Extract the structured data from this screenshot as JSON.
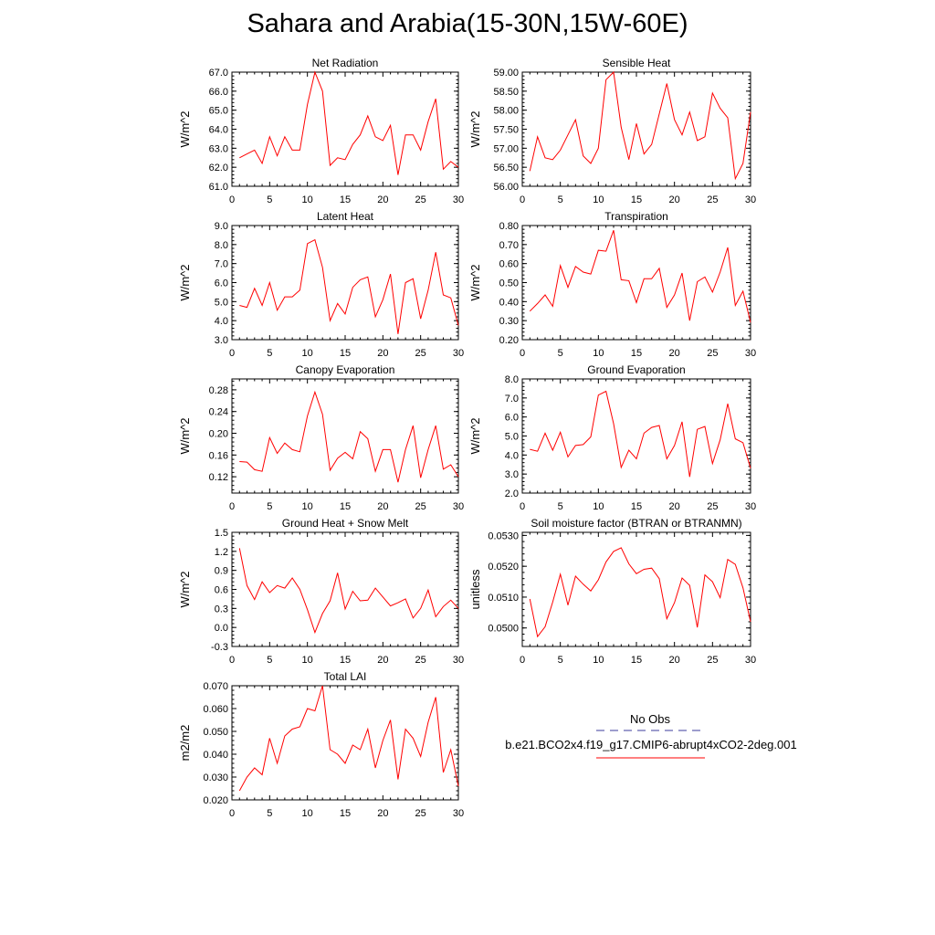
{
  "title": "Sahara and Arabia(15-30N,15W-60E)",
  "legend": {
    "entries": [
      {
        "label": "No Obs",
        "color": "#3b3b9e",
        "style": "dashed"
      },
      {
        "label": "b.e21.BCO2x4.f19_g17.CMIP6-abrupt4xCO2-2deg.001",
        "color": "#ff0000",
        "style": "solid"
      }
    ]
  },
  "chart_data": [
    {
      "type": "line",
      "title": "Net Radiation",
      "ylabel": "W/m^2",
      "x": [
        1,
        2,
        3,
        4,
        5,
        6,
        7,
        8,
        9,
        10,
        11,
        12,
        13,
        14,
        15,
        16,
        17,
        18,
        19,
        20,
        21,
        22,
        23,
        24,
        25,
        26,
        27,
        28,
        29,
        30
      ],
      "values": [
        62.5,
        62.7,
        62.9,
        62.2,
        63.6,
        62.6,
        63.6,
        62.9,
        62.9,
        65.3,
        67.0,
        66.0,
        62.1,
        62.5,
        62.4,
        63.2,
        63.7,
        64.7,
        63.6,
        63.4,
        64.2,
        61.6,
        63.7,
        63.7,
        62.9,
        64.4,
        65.6,
        61.9,
        62.3,
        62.0
      ],
      "xlim": [
        0,
        30
      ],
      "ylim": [
        61.0,
        67.0
      ],
      "xticks": [
        "0",
        "5",
        "10",
        "15",
        "20",
        "25",
        "30"
      ],
      "yticks": [
        "61.0",
        "62.0",
        "63.0",
        "64.0",
        "65.0",
        "66.0",
        "67.0"
      ]
    },
    {
      "type": "line",
      "title": "Sensible Heat",
      "ylabel": "W/m^2",
      "x": [
        1,
        2,
        3,
        4,
        5,
        6,
        7,
        8,
        9,
        10,
        11,
        12,
        13,
        14,
        15,
        16,
        17,
        18,
        19,
        20,
        21,
        22,
        23,
        24,
        25,
        26,
        27,
        28,
        29,
        30
      ],
      "values": [
        56.4,
        57.3,
        56.75,
        56.7,
        56.95,
        57.35,
        57.75,
        56.8,
        56.6,
        57.0,
        58.8,
        59.0,
        57.55,
        56.7,
        57.65,
        56.85,
        57.1,
        57.9,
        58.7,
        57.75,
        57.35,
        57.95,
        57.2,
        57.3,
        58.45,
        58.05,
        57.8,
        56.2,
        56.6,
        57.95
      ],
      "xlim": [
        0,
        30
      ],
      "ylim": [
        56.0,
        59.0
      ],
      "xticks": [
        "0",
        "5",
        "10",
        "15",
        "20",
        "25",
        "30"
      ],
      "yticks": [
        "56.00",
        "56.50",
        "57.00",
        "57.50",
        "58.00",
        "58.50",
        "59.00"
      ]
    },
    {
      "type": "line",
      "title": "Latent Heat",
      "ylabel": "W/m^2",
      "x": [
        1,
        2,
        3,
        4,
        5,
        6,
        7,
        8,
        9,
        10,
        11,
        12,
        13,
        14,
        15,
        16,
        17,
        18,
        19,
        20,
        21,
        22,
        23,
        24,
        25,
        26,
        27,
        28,
        29,
        30
      ],
      "values": [
        4.8,
        4.7,
        5.7,
        4.8,
        6.0,
        4.55,
        5.25,
        5.25,
        5.6,
        8.05,
        8.25,
        6.8,
        4.0,
        4.9,
        4.35,
        5.75,
        6.15,
        6.3,
        4.2,
        5.1,
        6.45,
        3.3,
        6.0,
        6.2,
        4.1,
        5.6,
        7.6,
        5.35,
        5.2,
        3.75
      ],
      "xlim": [
        0,
        30
      ],
      "ylim": [
        3.0,
        9.0
      ],
      "xticks": [
        "0",
        "5",
        "10",
        "15",
        "20",
        "25",
        "30"
      ],
      "yticks": [
        "3.0",
        "4.0",
        "5.0",
        "6.0",
        "7.0",
        "8.0",
        "9.0"
      ]
    },
    {
      "type": "line",
      "title": "Transpiration",
      "ylabel": "W/m^2",
      "x": [
        1,
        2,
        3,
        4,
        5,
        6,
        7,
        8,
        9,
        10,
        11,
        12,
        13,
        14,
        15,
        16,
        17,
        18,
        19,
        20,
        21,
        22,
        23,
        24,
        25,
        26,
        27,
        28,
        29,
        30
      ],
      "values": [
        0.35,
        0.39,
        0.435,
        0.375,
        0.59,
        0.475,
        0.585,
        0.555,
        0.545,
        0.67,
        0.665,
        0.775,
        0.515,
        0.51,
        0.395,
        0.52,
        0.52,
        0.575,
        0.37,
        0.435,
        0.55,
        0.3,
        0.505,
        0.53,
        0.45,
        0.555,
        0.685,
        0.38,
        0.455,
        0.29
      ],
      "xlim": [
        0,
        30
      ],
      "ylim": [
        0.2,
        0.8
      ],
      "xticks": [
        "0",
        "5",
        "10",
        "15",
        "20",
        "25",
        "30"
      ],
      "yticks": [
        "0.20",
        "0.30",
        "0.40",
        "0.50",
        "0.60",
        "0.70",
        "0.80"
      ]
    },
    {
      "type": "line",
      "title": "Canopy Evaporation",
      "ylabel": "W/m^2",
      "x": [
        1,
        2,
        3,
        4,
        5,
        6,
        7,
        8,
        9,
        10,
        11,
        12,
        13,
        14,
        15,
        16,
        17,
        18,
        19,
        20,
        21,
        22,
        23,
        24,
        25,
        26,
        27,
        28,
        29,
        30
      ],
      "values": [
        0.148,
        0.147,
        0.133,
        0.13,
        0.192,
        0.163,
        0.182,
        0.17,
        0.166,
        0.232,
        0.276,
        0.235,
        0.132,
        0.154,
        0.165,
        0.153,
        0.203,
        0.19,
        0.13,
        0.17,
        0.17,
        0.11,
        0.17,
        0.214,
        0.118,
        0.17,
        0.214,
        0.134,
        0.142,
        0.12
      ],
      "xlim": [
        0,
        30
      ],
      "ylim": [
        0.09,
        0.3
      ],
      "xticks": [
        "0",
        "5",
        "10",
        "15",
        "20",
        "25",
        "30"
      ],
      "yticks": [
        "0.12",
        "0.16",
        "0.20",
        "0.24",
        "0.28"
      ]
    },
    {
      "type": "line",
      "title": "Ground Evaporation",
      "ylabel": "W/m^2",
      "x": [
        1,
        2,
        3,
        4,
        5,
        6,
        7,
        8,
        9,
        10,
        11,
        12,
        13,
        14,
        15,
        16,
        17,
        18,
        19,
        20,
        21,
        22,
        23,
        24,
        25,
        26,
        27,
        28,
        29,
        30
      ],
      "values": [
        4.3,
        4.2,
        5.15,
        4.25,
        5.2,
        3.9,
        4.5,
        4.55,
        4.95,
        7.15,
        7.35,
        5.65,
        3.35,
        4.25,
        3.8,
        5.15,
        5.45,
        5.55,
        3.8,
        4.5,
        5.75,
        2.85,
        5.35,
        5.5,
        3.55,
        4.8,
        6.7,
        4.85,
        4.65,
        3.3
      ],
      "xlim": [
        0,
        30
      ],
      "ylim": [
        2.0,
        8.0
      ],
      "xticks": [
        "0",
        "5",
        "10",
        "15",
        "20",
        "25",
        "30"
      ],
      "yticks": [
        "2.0",
        "3.0",
        "4.0",
        "5.0",
        "6.0",
        "7.0",
        "8.0"
      ]
    },
    {
      "type": "line",
      "title": "Ground Heat + Snow Melt",
      "ylabel": "W/m^2",
      "x": [
        1,
        2,
        3,
        4,
        5,
        6,
        7,
        8,
        9,
        10,
        11,
        12,
        13,
        14,
        15,
        16,
        17,
        18,
        19,
        20,
        21,
        22,
        23,
        24,
        25,
        26,
        27,
        28,
        29,
        30
      ],
      "values": [
        1.25,
        0.66,
        0.44,
        0.72,
        0.55,
        0.66,
        0.62,
        0.78,
        0.6,
        0.28,
        -0.08,
        0.22,
        0.42,
        0.86,
        0.29,
        0.57,
        0.42,
        0.43,
        0.62,
        0.48,
        0.34,
        0.39,
        0.45,
        0.15,
        0.3,
        0.59,
        0.17,
        0.33,
        0.43,
        0.3
      ],
      "xlim": [
        0,
        30
      ],
      "ylim": [
        -0.3,
        1.5
      ],
      "xticks": [
        "0",
        "5",
        "10",
        "15",
        "20",
        "25",
        "30"
      ],
      "yticks": [
        "-0.3",
        "0.0",
        "0.3",
        "0.6",
        "0.9",
        "1.2",
        "1.5"
      ]
    },
    {
      "type": "line",
      "title": "Soil moisture factor (BTRAN or BTRANMN)",
      "ylabel": "unitless",
      "x": [
        1,
        2,
        3,
        4,
        5,
        6,
        7,
        8,
        9,
        10,
        11,
        12,
        13,
        14,
        15,
        16,
        17,
        18,
        19,
        20,
        21,
        22,
        23,
        24,
        25,
        26,
        27,
        28,
        29,
        30
      ],
      "values": [
        0.05094,
        0.04972,
        0.05004,
        0.05084,
        0.05174,
        0.05074,
        0.05168,
        0.05142,
        0.0512,
        0.05156,
        0.05214,
        0.05248,
        0.0526,
        0.05208,
        0.05176,
        0.0519,
        0.05194,
        0.0516,
        0.0503,
        0.05082,
        0.05162,
        0.05138,
        0.05002,
        0.05172,
        0.0515,
        0.05098,
        0.05222,
        0.05206,
        0.0513,
        0.0502
      ],
      "xlim": [
        0,
        30
      ],
      "ylim": [
        0.0494,
        0.0531
      ],
      "xticks": [
        "0",
        "5",
        "10",
        "15",
        "20",
        "25",
        "30"
      ],
      "yticks": [
        "0.0500",
        "0.0510",
        "0.0520",
        "0.0530"
      ]
    },
    {
      "type": "line",
      "title": "Total LAI",
      "ylabel": "m2/m2",
      "x": [
        1,
        2,
        3,
        4,
        5,
        6,
        7,
        8,
        9,
        10,
        11,
        12,
        13,
        14,
        15,
        16,
        17,
        18,
        19,
        20,
        21,
        22,
        23,
        24,
        25,
        26,
        27,
        28,
        29,
        30
      ],
      "values": [
        0.024,
        0.03,
        0.034,
        0.031,
        0.047,
        0.036,
        0.048,
        0.051,
        0.052,
        0.06,
        0.059,
        0.07,
        0.042,
        0.04,
        0.036,
        0.044,
        0.042,
        0.051,
        0.034,
        0.046,
        0.055,
        0.029,
        0.051,
        0.047,
        0.039,
        0.054,
        0.065,
        0.032,
        0.042,
        0.026
      ],
      "xlim": [
        0,
        30
      ],
      "ylim": [
        0.02,
        0.07
      ],
      "xticks": [
        "0",
        "5",
        "10",
        "15",
        "20",
        "25",
        "30"
      ],
      "yticks": [
        "0.020",
        "0.030",
        "0.040",
        "0.050",
        "0.060",
        "0.070"
      ]
    }
  ]
}
